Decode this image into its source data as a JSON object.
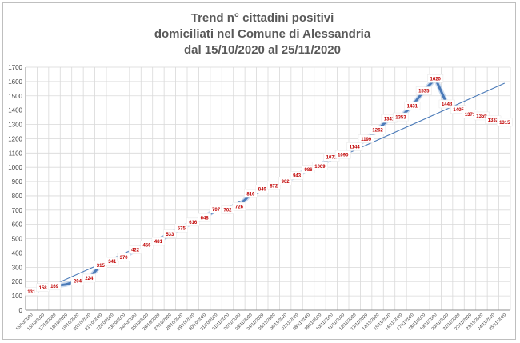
{
  "chart_data": {
    "type": "line",
    "title": [
      "Trend n° cittadini positivi",
      "domiciliati nel Comune di Alessandria",
      "dal 15/10/2020 al 25/11/2020"
    ],
    "ylim": [
      0,
      1700
    ],
    "yticks": [
      0,
      100,
      200,
      300,
      400,
      500,
      600,
      700,
      800,
      900,
      1000,
      1100,
      1200,
      1300,
      1400,
      1500,
      1600,
      1700
    ],
    "grid": true,
    "trendline": true,
    "colors": {
      "series": "#4a7ab8",
      "trendline": "#4a7ab8",
      "labels": "#c00000",
      "grid": "#d9d9d9"
    },
    "categories": [
      "15/10/2020",
      "16/10/2020",
      "17/10/2020",
      "18/10/2020",
      "19/10/2020",
      "20/10/2020",
      "21/10/2020",
      "22/10/2020",
      "23/10/2020",
      "24/10/2020",
      "25/10/2020",
      "26/10/2020",
      "27/10/2020",
      "28/10/2020",
      "29/10/2020",
      "30/10/2020",
      "31/10/2020",
      "01/11/2020",
      "02/11/2020",
      "03/11/2020",
      "04/11/2020",
      "05/11/2020",
      "06/11/2020",
      "07/11/2020",
      "08/11/2020",
      "09/11/2020",
      "10/11/2020",
      "11/11/2020",
      "12/11/2020",
      "13/11/2020",
      "14/11/2020",
      "15/11/2020",
      "16/11/2020",
      "17/11/2020",
      "18/11/2020",
      "19/11/2020",
      "20/11/2020",
      "21/11/2020",
      "22/11/2020",
      "23/11/2020",
      "24/11/2020",
      "25/11/2020"
    ],
    "series": [
      {
        "values": [
          131,
          158,
          169,
          180,
          204,
          224,
          315,
          341,
          370,
          422,
          456,
          481,
          533,
          575,
          616,
          648,
          707,
          702,
          726,
          816,
          849,
          872,
          902,
          943,
          986,
          1009,
          1071,
          1090,
          1144,
          1199,
          1262,
          1341,
          1353,
          1431,
          1535,
          1620,
          1443,
          1405,
          1371,
          1359,
          1332,
          1315
        ]
      }
    ],
    "data_labels": [
      "131",
      "158",
      "169",
      "",
      "204",
      "224",
      "315",
      "341",
      "370",
      "422",
      "456",
      "481",
      "533",
      "575",
      "616",
      "648",
      "707",
      "702",
      "726",
      "816",
      "849",
      "872",
      "902",
      "943",
      "986",
      "1009",
      "1071",
      "1090",
      "1144",
      "1199",
      "1262",
      "1341",
      "1353",
      "1431",
      "1535",
      "1620",
      "1443",
      "1405",
      "1371",
      "1359",
      "1332",
      "1315"
    ]
  }
}
